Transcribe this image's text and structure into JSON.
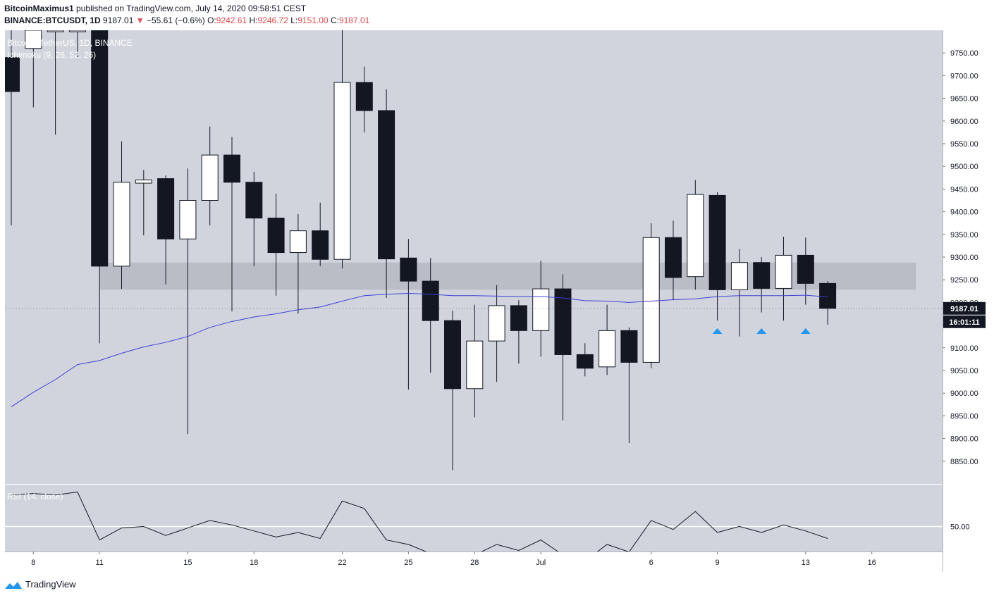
{
  "header": {
    "author": "BitcoinMaximus1",
    "published_text": "published on TradingView.com, July 14, 2020 09:58:51 CEST",
    "symbol": "BINANCE:BTCUSDT, 1D",
    "last": "9187.01",
    "change_arrow": "▼",
    "change": "−55.61 (−0.6%)",
    "o_label": "O:",
    "o": "9242.61",
    "h_label": "H:",
    "h": "9246.72",
    "l_label": "L:",
    "l": "9151.00",
    "c_label": "C:",
    "c": "9187.01"
  },
  "legend": {
    "pair": "Bitcoin / TetherUS, 1D, BINANCE",
    "indicator": "Ichimoku (9, 26, 52, 26)",
    "rsi": "RSI (14, close)"
  },
  "price_badge": "9187.01",
  "countdown_badge": "16:01:11",
  "footer": {
    "brand": "TradingView"
  },
  "colors": {
    "plot_bg": "#d1d4dc",
    "bear_body": "#131722",
    "bull_body": "#ffffff",
    "zone": "#b2b5be",
    "ichimoku_line": "#3f3fd6",
    "marker": "#2196f3"
  },
  "chart_data": [
    {
      "type": "candlestick",
      "ylim": [
        8800,
        9800
      ],
      "y_ticks": [
        "9750.00",
        "9700.00",
        "9650.00",
        "9600.00",
        "9550.00",
        "9500.00",
        "9450.00",
        "9400.00",
        "9350.00",
        "9300.00",
        "9250.00",
        "9200.00",
        "9150.00",
        "9100.00",
        "9050.00",
        "9000.00",
        "8950.00",
        "8900.00",
        "8850.00"
      ],
      "x_ticks": [
        "8",
        "11",
        "15",
        "18",
        "22",
        "25",
        "28",
        "Jul",
        "6",
        "9",
        "13",
        "16"
      ],
      "x_tick_positions": [
        1.0,
        4.0,
        8.0,
        11.0,
        15.0,
        18.0,
        21.0,
        24.0,
        29.0,
        32.0,
        36.0,
        39.0
      ],
      "candles": [
        {
          "x": -0.0,
          "o": 9740,
          "h": 9800,
          "l": 9370,
          "c": 9665
        },
        {
          "x": 1.0,
          "o": 9760,
          "h": 9800,
          "l": 9630,
          "c": 9800
        },
        {
          "x": 2.0,
          "o": 9800,
          "h": 9800,
          "l": 9570,
          "c": 9800
        },
        {
          "x": 3.0,
          "o": 9800,
          "h": 9800,
          "l": 9740,
          "c": 9800
        },
        {
          "x": 4.0,
          "o": 9800,
          "h": 9800,
          "l": 9110,
          "c": 9280
        },
        {
          "x": 5.0,
          "o": 9280,
          "h": 9555,
          "l": 9230,
          "c": 9465
        },
        {
          "x": 6.0,
          "o": 9463,
          "h": 9492,
          "l": 9348,
          "c": 9470
        },
        {
          "x": 7.0,
          "o": 9473,
          "h": 9480,
          "l": 9240,
          "c": 9340
        },
        {
          "x": 8.0,
          "o": 9340,
          "h": 9495,
          "l": 8910,
          "c": 9425
        },
        {
          "x": 9.0,
          "o": 9425,
          "h": 9588,
          "l": 9370,
          "c": 9525
        },
        {
          "x": 10.0,
          "o": 9525,
          "h": 9565,
          "l": 9180,
          "c": 9465
        },
        {
          "x": 11.0,
          "o": 9465,
          "h": 9488,
          "l": 9280,
          "c": 9386
        },
        {
          "x": 12.0,
          "o": 9386,
          "h": 9440,
          "l": 9215,
          "c": 9310
        },
        {
          "x": 13.0,
          "o": 9310,
          "h": 9395,
          "l": 9175,
          "c": 9358
        },
        {
          "x": 14.0,
          "o": 9358,
          "h": 9420,
          "l": 9280,
          "c": 9295
        },
        {
          "x": 15.0,
          "o": 9295,
          "h": 9800,
          "l": 9275,
          "c": 9685
        },
        {
          "x": 16.0,
          "o": 9685,
          "h": 9720,
          "l": 9575,
          "c": 9623
        },
        {
          "x": 17.0,
          "o": 9623,
          "h": 9670,
          "l": 9210,
          "c": 9296
        },
        {
          "x": 18.0,
          "o": 9298,
          "h": 9340,
          "l": 9008,
          "c": 9247
        },
        {
          "x": 19.0,
          "o": 9247,
          "h": 9298,
          "l": 9045,
          "c": 9160
        },
        {
          "x": 20.0,
          "o": 9160,
          "h": 9182,
          "l": 8830,
          "c": 9010
        },
        {
          "x": 21.0,
          "o": 9010,
          "h": 9195,
          "l": 8947,
          "c": 9115
        },
        {
          "x": 22.0,
          "o": 9115,
          "h": 9238,
          "l": 9025,
          "c": 9193
        },
        {
          "x": 23.0,
          "o": 9193,
          "h": 9205,
          "l": 9065,
          "c": 9138
        },
        {
          "x": 24.0,
          "o": 9138,
          "h": 9292,
          "l": 9080,
          "c": 9230
        },
        {
          "x": 25.0,
          "o": 9230,
          "h": 9262,
          "l": 8940,
          "c": 9085
        },
        {
          "x": 26.0,
          "o": 9085,
          "h": 9110,
          "l": 9037,
          "c": 9055
        },
        {
          "x": 27.0,
          "o": 9058,
          "h": 9195,
          "l": 9040,
          "c": 9138
        },
        {
          "x": 28.0,
          "o": 9138,
          "h": 9145,
          "l": 8890,
          "c": 9068
        },
        {
          "x": 29.0,
          "o": 9068,
          "h": 9375,
          "l": 9055,
          "c": 9343
        },
        {
          "x": 30.0,
          "o": 9343,
          "h": 9380,
          "l": 9205,
          "c": 9255
        },
        {
          "x": 31.0,
          "o": 9257,
          "h": 9470,
          "l": 9228,
          "c": 9438
        },
        {
          "x": 32.0,
          "o": 9436,
          "h": 9443,
          "l": 9160,
          "c": 9228
        },
        {
          "x": 33.0,
          "o": 9228,
          "h": 9318,
          "l": 9125,
          "c": 9288
        },
        {
          "x": 34.0,
          "o": 9288,
          "h": 9300,
          "l": 9178,
          "c": 9231
        },
        {
          "x": 35.0,
          "o": 9231,
          "h": 9345,
          "l": 9160,
          "c": 9304
        },
        {
          "x": 36.0,
          "o": 9304,
          "h": 9343,
          "l": 9195,
          "c": 9242
        },
        {
          "x": 37.0,
          "o": 9242,
          "h": 9247,
          "l": 9151,
          "c": 9187
        }
      ],
      "support_zone": {
        "x_range": [
          4.0,
          41.0
        ],
        "y_range": [
          9228,
          9288
        ]
      },
      "ichimoku_line": {
        "x": [
          -0.0,
          1.0,
          2.0,
          3.0,
          4.0,
          5.0,
          6.0,
          7.0,
          8.0,
          9.0,
          10.0,
          11.0,
          12.0,
          13.0,
          14.0,
          15.0,
          16.0,
          17.0,
          18.0,
          19.0,
          20.0,
          21.0,
          22.0,
          23.0,
          24.0,
          25.0,
          26.0,
          27.0,
          28.0,
          29.0,
          30.0,
          31.0,
          32.0,
          33.0,
          34.0,
          35.0,
          36.0,
          37.0
        ],
        "y": [
          8970,
          9002,
          9030,
          9063,
          9072,
          9088,
          9102,
          9112,
          9125,
          9145,
          9158,
          9168,
          9175,
          9184,
          9190,
          9203,
          9215,
          9218,
          9220,
          9218,
          9215,
          9215,
          9214,
          9213,
          9213,
          9210,
          9204,
          9203,
          9200,
          9203,
          9206,
          9208,
          9213,
          9215,
          9215,
          9215,
          9216,
          9212
        ]
      },
      "markers": [
        32.0,
        34.0,
        36.0
      ]
    },
    {
      "type": "line",
      "name": "RSI (14, close)",
      "ylim": [
        30,
        77
      ],
      "reference_level": 50,
      "y_ticks": [
        "50.00"
      ],
      "x": [
        -0.0,
        1.0,
        2.0,
        3.0,
        4.0,
        5.0,
        6.0,
        7.0,
        8.0,
        9.0,
        10.0,
        11.0,
        12.0,
        13.0,
        14.0,
        15.0,
        16.0,
        17.0,
        18.0,
        19.0,
        20.0,
        21.0,
        22.0,
        23.0,
        24.0,
        25.0,
        26.0,
        27.0,
        28.0,
        29.0,
        30.0,
        31.0,
        32.0,
        33.0,
        34.0,
        35.0,
        36.0,
        37.0
      ],
      "y": [
        71,
        72,
        71,
        73,
        41,
        49,
        50,
        44,
        49,
        54,
        51,
        47,
        43,
        46,
        42,
        67,
        62,
        41,
        38,
        32,
        27,
        31,
        38,
        34,
        41,
        31,
        27,
        38,
        33,
        54,
        48,
        60,
        46,
        50,
        46,
        51,
        47,
        42
      ]
    }
  ]
}
